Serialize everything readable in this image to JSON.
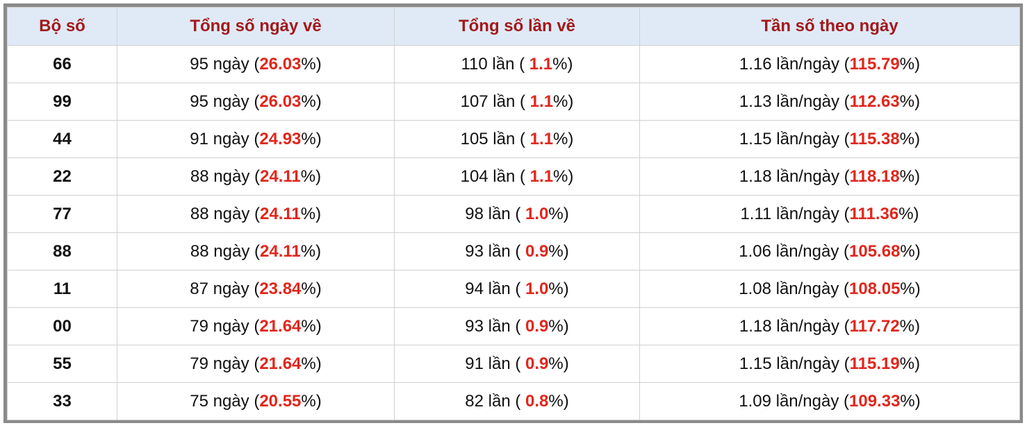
{
  "table": {
    "headers": [
      "Bộ số",
      "Tổng số ngày về",
      "Tổng số lần về",
      "Tần số theo ngày"
    ],
    "rows": [
      [
        "66",
        [
          "95 ngày (",
          "26.03",
          "%)"
        ],
        [
          "110 lần ( ",
          "1.1",
          "%)"
        ],
        [
          "1.16 lần/ngày (",
          "115.79",
          "%)"
        ]
      ],
      [
        "99",
        [
          "95 ngày (",
          "26.03",
          "%)"
        ],
        [
          "107 lần ( ",
          "1.1",
          "%)"
        ],
        [
          "1.13 lần/ngày (",
          "112.63",
          "%)"
        ]
      ],
      [
        "44",
        [
          "91 ngày (",
          "24.93",
          "%)"
        ],
        [
          "105 lần ( ",
          "1.1",
          "%)"
        ],
        [
          "1.15 lần/ngày (",
          "115.38",
          "%)"
        ]
      ],
      [
        "22",
        [
          "88 ngày (",
          "24.11",
          "%)"
        ],
        [
          "104 lần ( ",
          "1.1",
          "%)"
        ],
        [
          "1.18 lần/ngày (",
          "118.18",
          "%)"
        ]
      ],
      [
        "77",
        [
          "88 ngày (",
          "24.11",
          "%)"
        ],
        [
          "98 lần ( ",
          "1.0",
          "%)"
        ],
        [
          "1.11 lần/ngày (",
          "111.36",
          "%)"
        ]
      ],
      [
        "88",
        [
          "88 ngày (",
          "24.11",
          "%)"
        ],
        [
          "93 lần ( ",
          "0.9",
          "%)"
        ],
        [
          "1.06 lần/ngày (",
          "105.68",
          "%)"
        ]
      ],
      [
        "11",
        [
          "87 ngày (",
          "23.84",
          "%)"
        ],
        [
          "94 lần ( ",
          "1.0",
          "%)"
        ],
        [
          "1.08 lần/ngày (",
          "108.05",
          "%)"
        ]
      ],
      [
        "00",
        [
          "79 ngày (",
          "21.64",
          "%)"
        ],
        [
          "93 lần ( ",
          "0.9",
          "%)"
        ],
        [
          "1.18 lần/ngày (",
          "117.72",
          "%)"
        ]
      ],
      [
        "55",
        [
          "79 ngày (",
          "21.64",
          "%)"
        ],
        [
          "91 lần ( ",
          "0.9",
          "%)"
        ],
        [
          "1.15 lần/ngày (",
          "115.19",
          "%)"
        ]
      ],
      [
        "33",
        [
          "75 ngày (",
          "20.55",
          "%)"
        ],
        [
          "82 lần ( ",
          "0.8",
          "%)"
        ],
        [
          "1.09 lần/ngày (",
          "109.33",
          "%)"
        ]
      ]
    ]
  }
}
